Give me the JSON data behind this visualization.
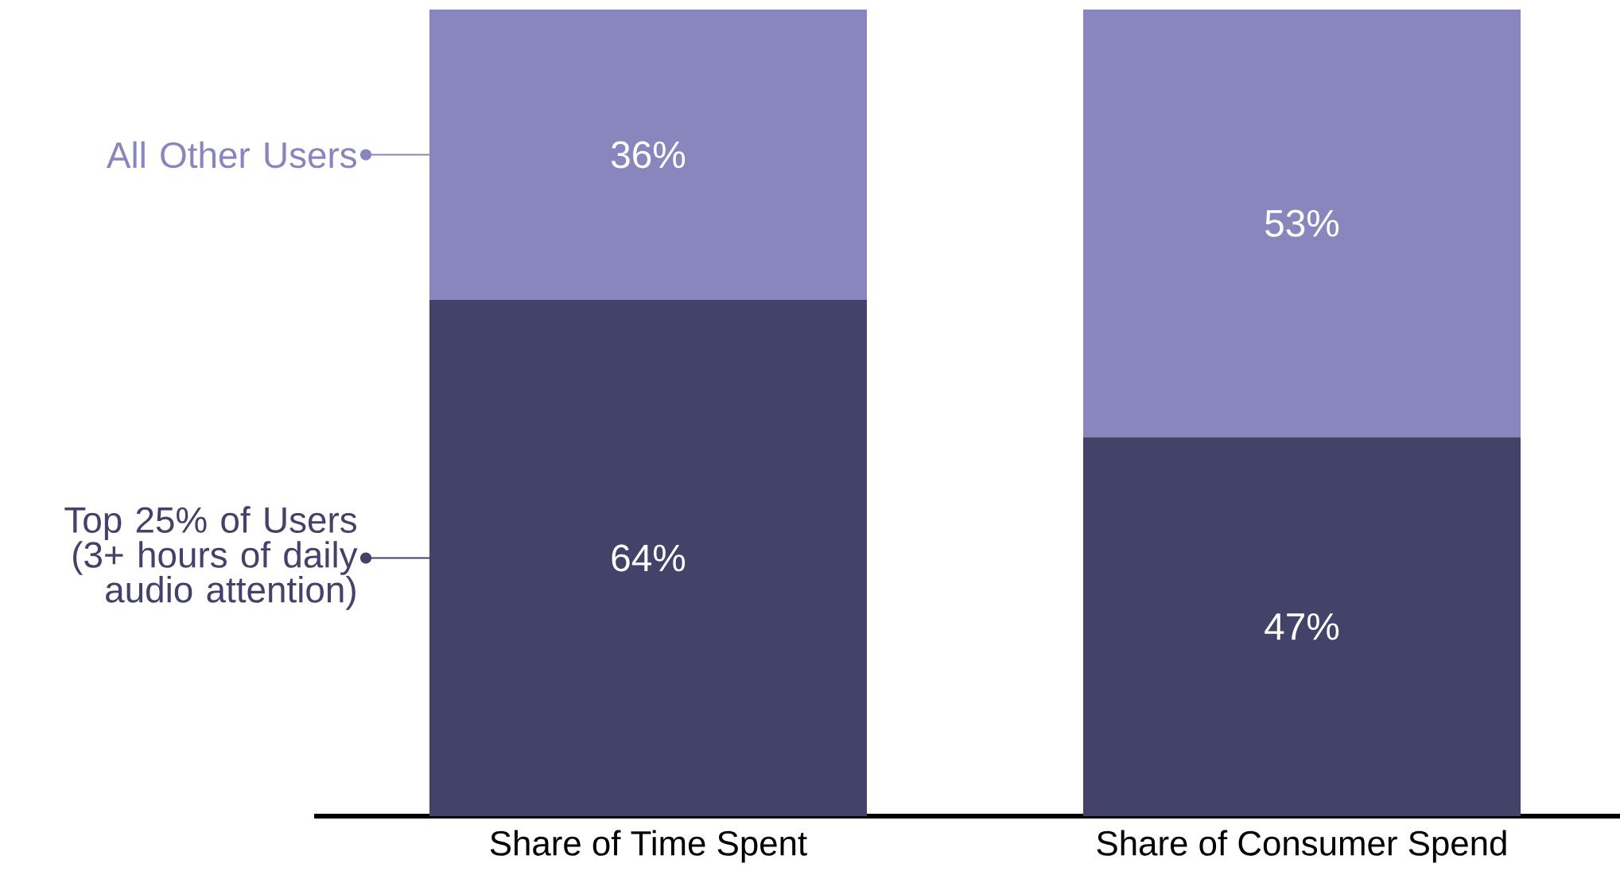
{
  "chart_data": {
    "type": "bar",
    "stacked": true,
    "categories": [
      "Share of Time Spent",
      "Share of Consumer Spend"
    ],
    "series": [
      {
        "name": "Top 25% of Users (3+ hours of daily audio attention)",
        "color": "#434369",
        "values": [
          64,
          47
        ],
        "value_labels": [
          "64%",
          "47%"
        ]
      },
      {
        "name": "All Other Users",
        "color": "#8986be",
        "values": [
          36,
          53
        ],
        "value_labels": [
          "36%",
          "53%"
        ]
      }
    ],
    "tick_labels": "x",
    "legend": "left"
  }
}
